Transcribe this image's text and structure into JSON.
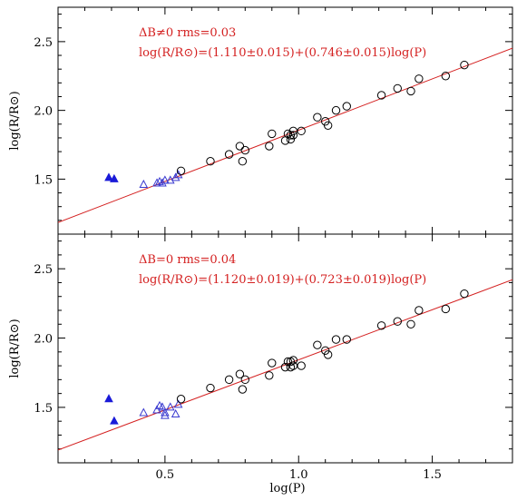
{
  "figure": {
    "xlabel": "log(P)",
    "colors": {
      "axes": "#000000",
      "fit": "#d42020",
      "annotation": "#d42020",
      "open_triangle": "#3a3ad0",
      "filled_triangle": "#1a1ad8",
      "circle": "#000000"
    }
  },
  "chart_data": [
    {
      "type": "scatter",
      "panel": "top",
      "xlabel": "",
      "ylabel": "log(R/R⊙)",
      "xlim": [
        0.1,
        1.8
      ],
      "ylim": [
        1.1,
        2.75
      ],
      "xticks": [
        0.5,
        1.0,
        1.5
      ],
      "yticks": [
        1.5,
        2.0,
        2.5
      ],
      "grid": false,
      "annotations": [
        "ΔB≠0 rms=0.03",
        "log(R/R⊙)=(1.110±0.015)+(0.746±0.015)log(P)"
      ],
      "fit_line": {
        "intercept": 1.11,
        "slope": 0.746
      },
      "series": [
        {
          "marker": "filled-triangle",
          "points": [
            [
              0.29,
              1.51
            ],
            [
              0.31,
              1.5
            ]
          ]
        },
        {
          "marker": "open-triangle",
          "points": [
            [
              0.42,
              1.46
            ],
            [
              0.47,
              1.47
            ],
            [
              0.48,
              1.48
            ],
            [
              0.49,
              1.47
            ],
            [
              0.5,
              1.49
            ],
            [
              0.52,
              1.49
            ],
            [
              0.54,
              1.51
            ],
            [
              0.55,
              1.53
            ]
          ]
        },
        {
          "marker": "open-circle",
          "points": [
            [
              0.56,
              1.56
            ],
            [
              0.67,
              1.63
            ],
            [
              0.74,
              1.68
            ],
            [
              0.78,
              1.74
            ],
            [
              0.79,
              1.63
            ],
            [
              0.8,
              1.71
            ],
            [
              0.89,
              1.74
            ],
            [
              0.9,
              1.83
            ],
            [
              0.95,
              1.78
            ],
            [
              0.96,
              1.83
            ],
            [
              0.97,
              1.82
            ],
            [
              0.97,
              1.79
            ],
            [
              0.98,
              1.82
            ],
            [
              0.98,
              1.85
            ],
            [
              1.01,
              1.85
            ],
            [
              1.07,
              1.95
            ],
            [
              1.1,
              1.92
            ],
            [
              1.11,
              1.89
            ],
            [
              1.14,
              2.0
            ],
            [
              1.18,
              2.03
            ],
            [
              1.31,
              2.11
            ],
            [
              1.37,
              2.16
            ],
            [
              1.42,
              2.14
            ],
            [
              1.45,
              2.23
            ],
            [
              1.55,
              2.25
            ],
            [
              1.62,
              2.33
            ]
          ]
        }
      ]
    },
    {
      "type": "scatter",
      "panel": "bottom",
      "xlabel": "log(P)",
      "ylabel": "log(R/R⊙)",
      "xlim": [
        0.1,
        1.8
      ],
      "ylim": [
        1.1,
        2.75
      ],
      "xticks": [
        0.5,
        1.0,
        1.5
      ],
      "yticks": [
        1.5,
        2.0,
        2.5
      ],
      "grid": false,
      "annotations": [
        "ΔB=0 rms=0.04",
        "log(R/R⊙)=(1.120±0.019)+(0.723±0.019)log(P)"
      ],
      "fit_line": {
        "intercept": 1.12,
        "slope": 0.723
      },
      "series": [
        {
          "marker": "filled-triangle",
          "points": [
            [
              0.29,
              1.56
            ],
            [
              0.31,
              1.4
            ]
          ]
        },
        {
          "marker": "open-triangle",
          "points": [
            [
              0.42,
              1.46
            ],
            [
              0.47,
              1.48
            ],
            [
              0.48,
              1.51
            ],
            [
              0.49,
              1.5
            ],
            [
              0.5,
              1.46
            ],
            [
              0.5,
              1.44
            ],
            [
              0.52,
              1.5
            ],
            [
              0.54,
              1.45
            ],
            [
              0.55,
              1.52
            ]
          ]
        },
        {
          "marker": "open-circle",
          "points": [
            [
              0.56,
              1.56
            ],
            [
              0.67,
              1.64
            ],
            [
              0.74,
              1.7
            ],
            [
              0.78,
              1.74
            ],
            [
              0.79,
              1.63
            ],
            [
              0.8,
              1.7
            ],
            [
              0.89,
              1.73
            ],
            [
              0.9,
              1.82
            ],
            [
              0.95,
              1.79
            ],
            [
              0.96,
              1.83
            ],
            [
              0.97,
              1.83
            ],
            [
              0.97,
              1.79
            ],
            [
              0.98,
              1.8
            ],
            [
              0.98,
              1.84
            ],
            [
              1.01,
              1.8
            ],
            [
              1.07,
              1.95
            ],
            [
              1.1,
              1.91
            ],
            [
              1.11,
              1.88
            ],
            [
              1.14,
              1.99
            ],
            [
              1.18,
              1.99
            ],
            [
              1.31,
              2.09
            ],
            [
              1.37,
              2.12
            ],
            [
              1.42,
              2.1
            ],
            [
              1.45,
              2.2
            ],
            [
              1.55,
              2.21
            ],
            [
              1.62,
              2.32
            ]
          ]
        }
      ]
    }
  ]
}
